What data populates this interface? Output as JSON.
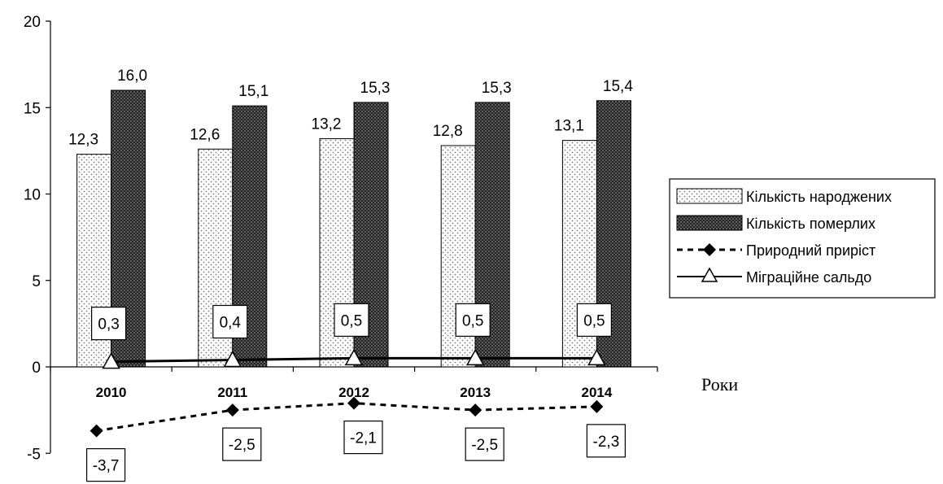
{
  "chart_data": {
    "type": "bar",
    "categories": [
      "2010",
      "2011",
      "2012",
      "2013",
      "2014"
    ],
    "series": [
      {
        "name": "Кількість народжених",
        "type": "bar",
        "values": [
          12.3,
          12.6,
          13.2,
          12.8,
          13.1
        ],
        "labels": [
          "12,3",
          "12,6",
          "13,2",
          "12,8",
          "13,1"
        ]
      },
      {
        "name": "Кількість померлих",
        "type": "bar",
        "values": [
          16.0,
          15.1,
          15.3,
          15.3,
          15.4
        ],
        "labels": [
          "16,0",
          "15,1",
          "15,3",
          "15,3",
          "15,4"
        ]
      },
      {
        "name": "Природний приріст",
        "type": "line",
        "line_style": "dashed",
        "marker": "diamond",
        "values": [
          -3.7,
          -2.5,
          -2.1,
          -2.5,
          -2.3
        ],
        "labels": [
          "-3,7",
          "-2,5",
          "-2,1",
          "-2,5",
          "-2,3"
        ]
      },
      {
        "name": "Міграційне сальдо",
        "type": "line",
        "line_style": "solid",
        "marker": "triangle",
        "values": [
          0.3,
          0.4,
          0.5,
          0.5,
          0.5
        ],
        "labels": [
          "0,3",
          "0,4",
          "0,5",
          "0,5",
          "0,5"
        ]
      }
    ],
    "y_ticks": [
      "-5",
      "0",
      "5",
      "10",
      "15",
      "20"
    ],
    "ylim": [
      -5,
      20
    ],
    "xlabel": "Роки",
    "legend_position": "right",
    "grid": false
  }
}
